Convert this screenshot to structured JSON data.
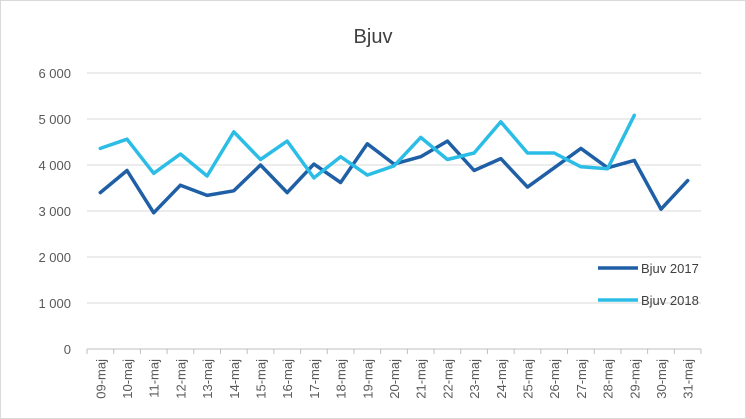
{
  "chart_data": {
    "type": "line",
    "title": "Bjuv",
    "xlabel": "",
    "ylabel": "",
    "ylim": [
      0,
      6000
    ],
    "yticks": [
      "0",
      "1 000",
      "2 000",
      "3 000",
      "4 000",
      "5 000",
      "6 000"
    ],
    "ytick_values": [
      0,
      1000,
      2000,
      3000,
      4000,
      5000,
      6000
    ],
    "grid": true,
    "legend_position": "right",
    "categories": [
      "09-maj",
      "10-maj",
      "11-maj",
      "12-maj",
      "13-maj",
      "14-maj",
      "15-maj",
      "16-maj",
      "17-maj",
      "18-maj",
      "19-maj",
      "20-maj",
      "21-maj",
      "22-maj",
      "23-maj",
      "24-maj",
      "25-maj",
      "26-maj",
      "27-maj",
      "28-maj",
      "29-maj",
      "30-maj",
      "31-maj"
    ],
    "series": [
      {
        "name": "Bjuv 2017",
        "color": "#1f5fa6",
        "values": [
          3400,
          3880,
          2960,
          3560,
          3340,
          3440,
          4000,
          3400,
          4020,
          3620,
          4460,
          4020,
          4180,
          4520,
          3880,
          4140,
          3520,
          3940,
          4360,
          3940,
          4100,
          3040,
          3660
        ]
      },
      {
        "name": "Bjuv 2018",
        "color": "#2bbde6",
        "values": [
          4360,
          4560,
          3820,
          4240,
          3760,
          4720,
          4120,
          4520,
          3720,
          4180,
          3780,
          3980,
          4600,
          4120,
          4260,
          4940,
          4260,
          4260,
          3960,
          3920,
          5080,
          null,
          null
        ]
      }
    ]
  }
}
